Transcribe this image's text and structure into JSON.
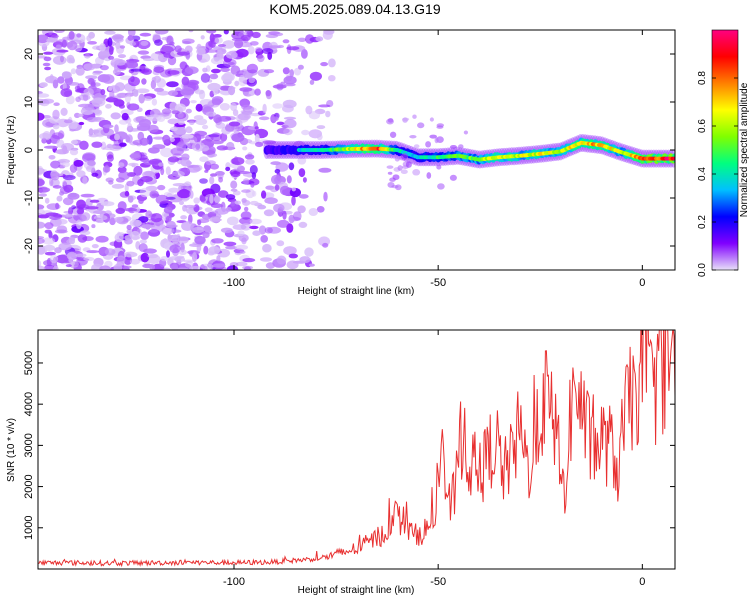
{
  "title": "KOM5.2025.089.04.13.G19",
  "chart_data": [
    {
      "type": "heatmap",
      "xlabel": "Height of straight line (km)",
      "ylabel": "Frequency (Hz)",
      "xlim": [
        -148,
        8
      ],
      "ylim": [
        -25,
        25
      ],
      "x_ticks": [
        -100,
        -50,
        0
      ],
      "y_ticks": [
        -20,
        -10,
        0,
        10,
        20
      ],
      "colorbar": {
        "label": "Normalized spectral amplitude",
        "range": [
          0,
          1
        ],
        "ticks": [
          "0.0",
          "0.2",
          "0.4",
          "0.6",
          "0.8"
        ],
        "colors": [
          "#e8e0f8",
          "#8000ff",
          "#0000ff",
          "#00c0ff",
          "#00ff80",
          "#80ff00",
          "#ffff00",
          "#ff8000",
          "#ff0000",
          "#ff0080"
        ]
      },
      "ridge": {
        "x": [
          -92,
          -85,
          -78,
          -72,
          -65,
          -60,
          -55,
          -50,
          -45,
          -40,
          -35,
          -30,
          -25,
          -20,
          -15,
          -10,
          -5,
          0,
          8
        ],
        "y": [
          0,
          0,
          0,
          0.2,
          0.3,
          0,
          -1.5,
          -1.5,
          -1.2,
          -2,
          -1.5,
          -1.2,
          -0.8,
          -0.3,
          1.5,
          1,
          -0.5,
          -1.8,
          -1.8
        ],
        "amplitude": [
          0.3,
          0.35,
          0.4,
          0.6,
          0.85,
          0.4,
          0.35,
          0.45,
          0.5,
          0.55,
          0.7,
          0.6,
          0.65,
          0.6,
          0.7,
          0.75,
          0.6,
          0.85,
          0.9
        ]
      }
    },
    {
      "type": "line",
      "xlabel": "Height of straight line (km)",
      "ylabel": "SNR (10 * v/v)",
      "xlim": [
        -148,
        8
      ],
      "ylim": [
        0,
        5800
      ],
      "x_ticks": [
        -100,
        -50,
        0
      ],
      "y_ticks": [
        1000,
        2000,
        3000,
        4000,
        5000
      ],
      "color": "#e83030",
      "series": [
        {
          "x": [
            -148,
            -140,
            -130,
            -120,
            -110,
            -100,
            -90,
            -80,
            -75,
            -70,
            -66,
            -63,
            -60,
            -58,
            -56,
            -54,
            -52,
            -50,
            -49,
            -48,
            -46,
            -44,
            -42,
            -40,
            -38,
            -36,
            -34,
            -32,
            -30,
            -28,
            -26,
            -24,
            -22,
            -20,
            -19,
            -18,
            -16,
            -14,
            -12,
            -10,
            -8,
            -6,
            -4,
            -2,
            0,
            2,
            4,
            6,
            8
          ],
          "y": [
            150,
            150,
            140,
            150,
            160,
            150,
            170,
            250,
            350,
            500,
            700,
            900,
            1300,
            1100,
            800,
            900,
            1000,
            1700,
            3700,
            1400,
            1800,
            3500,
            2500,
            2200,
            2700,
            3200,
            2300,
            2700,
            3400,
            2400,
            3100,
            4300,
            3500,
            3000,
            1300,
            3500,
            4500,
            3400,
            2900,
            3100,
            3000,
            2400,
            3800,
            4200,
            5000,
            4300,
            4700,
            5200,
            4800
          ]
        }
      ]
    }
  ]
}
